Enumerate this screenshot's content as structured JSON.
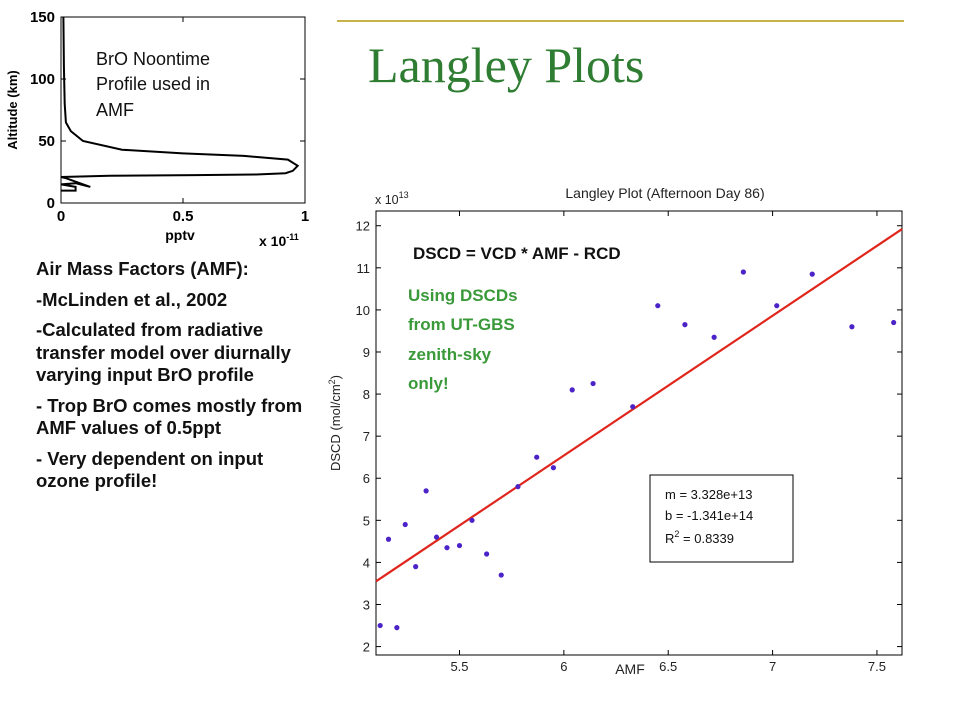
{
  "slide": {
    "title": "Langley Plots",
    "accent_color": "#2e7d32",
    "rule_color": "#c7b34a"
  },
  "left_text": {
    "heading": "Air Mass Factors (AMF):",
    "items": [
      "-McLinden et al., 2002",
      "-Calculated from radiative transfer model over diurnally varying input BrO profile",
      "- Trop BrO comes mostly from AMF values of 0.5ppt",
      "- Very dependent on input ozone profile!"
    ]
  },
  "profile_annotation": [
    "BrO Noontime",
    "Profile used in",
    "AMF"
  ],
  "langley_annotations": {
    "equation": "DSCD = VCD * AMF - RCD",
    "note": [
      "Using DSCDs",
      "from UT-GBS",
      "zenith-sky",
      "only!"
    ],
    "note_color": "#3a9a3a"
  },
  "chart_data": [
    {
      "type": "line",
      "title": "",
      "xlabel": "pptv",
      "ylabel": "Altitude (km)",
      "x_multiplier": "x 10",
      "x_multiplier_exp": "-11",
      "xlim": [
        0,
        1
      ],
      "ylim": [
        0,
        150
      ],
      "xticks": [
        0,
        0.5,
        1
      ],
      "xtick_labels": [
        "0",
        "0.5",
        "1"
      ],
      "yticks": [
        0,
        50,
        100,
        150
      ],
      "ytick_labels": [
        "0",
        "50",
        "100",
        "150"
      ],
      "series": [
        {
          "x": [
            0.0,
            0.06,
            0.06,
            0.0,
            0.06,
            0.12,
            0.02,
            0.0,
            0.2,
            0.55,
            0.8,
            0.92,
            0.95,
            0.97,
            0.93,
            0.75,
            0.5,
            0.25,
            0.09,
            0.04,
            0.02,
            0.015,
            0.012,
            0.01
          ],
          "y": [
            10,
            10,
            13,
            15,
            16,
            13,
            20,
            21,
            22,
            22.5,
            23,
            24,
            26,
            30,
            35,
            38,
            40,
            43,
            50,
            58,
            65,
            80,
            110,
            150
          ],
          "color": "#000000"
        }
      ]
    },
    {
      "type": "scatter",
      "title": "Langley Plot (Afternoon Day 86)",
      "xlabel": "AMF",
      "ylabel": "DSCD (mol/cm",
      "ylabel_sup": "2",
      "ylabel_end": ")",
      "y_multiplier": "x 10",
      "y_multiplier_exp": "13",
      "xlim": [
        5.1,
        7.62
      ],
      "ylim": [
        1.8,
        12.35
      ],
      "xticks": [
        5.5,
        6,
        6.5,
        7,
        7.5
      ],
      "xtick_labels": [
        "5.5",
        "6",
        "6.5",
        "7",
        "7.5"
      ],
      "yticks": [
        2,
        3,
        4,
        5,
        6,
        7,
        8,
        9,
        10,
        11,
        12
      ],
      "ytick_labels": [
        "2",
        "3",
        "4",
        "5",
        "6",
        "7",
        "8",
        "9",
        "10",
        "11",
        "12"
      ],
      "points": {
        "x": [
          5.12,
          5.16,
          5.2,
          5.24,
          5.29,
          5.34,
          5.39,
          5.44,
          5.5,
          5.56,
          5.63,
          5.7,
          5.78,
          5.87,
          5.95,
          6.04,
          6.14,
          6.33,
          6.45,
          6.58,
          6.72,
          6.86,
          7.02,
          7.19,
          7.38,
          7.58
        ],
        "y": [
          2.5,
          4.55,
          2.45,
          4.9,
          3.9,
          5.7,
          4.6,
          4.35,
          4.4,
          5.0,
          4.2,
          3.7,
          5.8,
          6.5,
          6.25,
          8.1,
          8.25,
          7.7,
          10.1,
          9.65,
          9.35,
          10.9,
          10.1,
          10.85,
          9.6,
          9.7
        ],
        "color": "#4b23c8"
      },
      "fit": {
        "x": [
          5.1,
          7.62
        ],
        "y": [
          3.55,
          11.92
        ],
        "color": "#e0261c"
      },
      "stats": [
        "m = 3.328e+13",
        "b = -1.341e+14",
        "R",
        "2",
        " = 0.8339"
      ],
      "grid": false
    }
  ]
}
